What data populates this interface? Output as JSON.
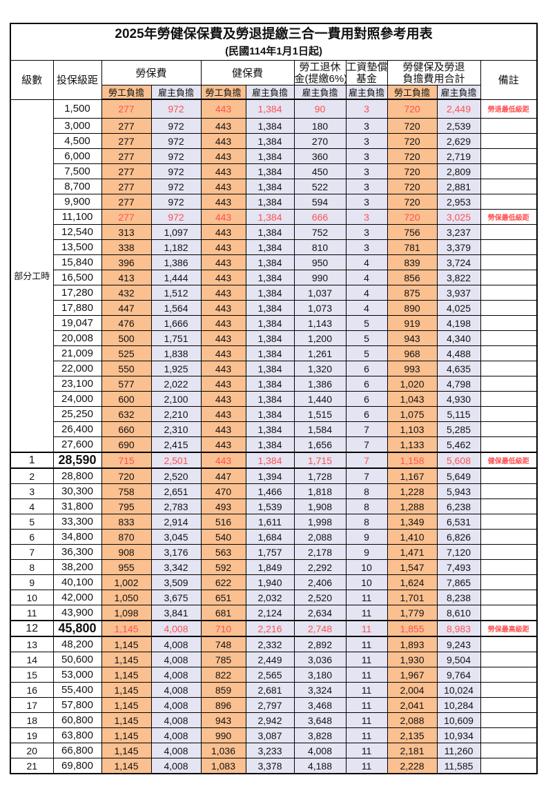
{
  "title": "2025年勞健保保費及勞退提繳三合一費用對照參考用表",
  "subtitle": "(民國114年1月1日起)",
  "header": {
    "level": "級數",
    "bracket": "投保級距",
    "labor_group": "勞保費",
    "health_group": "健保費",
    "pension_line1": "勞工退休",
    "pension_line2": "金(提繳6%)",
    "wage_line1": "工資墊償",
    "wage_line2": "基金",
    "total_line1": "勞健保及勞退",
    "total_line2": "負擔費用合計",
    "remark": "備註",
    "employee_label": "勞工負擔",
    "employer_label": "雇主負擔"
  },
  "part_time_label": "部分工時",
  "part_time_rowspan": 23,
  "colors": {
    "employee_bg": "#FAC090",
    "employer_bg": "#E4E4F2",
    "highlight_text": "#FF5050",
    "border": "#000000"
  },
  "rows": [
    {
      "level": null,
      "bracket": "1,500",
      "values": [
        "277",
        "972",
        "443",
        "1,384",
        "90",
        "3",
        "720",
        "2,449"
      ],
      "remark": "勞退最低級距",
      "red": true,
      "em": false
    },
    {
      "level": null,
      "bracket": "3,000",
      "values": [
        "277",
        "972",
        "443",
        "1,384",
        "180",
        "3",
        "720",
        "2,539"
      ],
      "remark": "",
      "red": false,
      "em": false
    },
    {
      "level": null,
      "bracket": "4,500",
      "values": [
        "277",
        "972",
        "443",
        "1,384",
        "270",
        "3",
        "720",
        "2,629"
      ],
      "remark": "",
      "red": false,
      "em": false
    },
    {
      "level": null,
      "bracket": "6,000",
      "values": [
        "277",
        "972",
        "443",
        "1,384",
        "360",
        "3",
        "720",
        "2,719"
      ],
      "remark": "",
      "red": false,
      "em": false
    },
    {
      "level": null,
      "bracket": "7,500",
      "values": [
        "277",
        "972",
        "443",
        "1,384",
        "450",
        "3",
        "720",
        "2,809"
      ],
      "remark": "",
      "red": false,
      "em": false
    },
    {
      "level": null,
      "bracket": "8,700",
      "values": [
        "277",
        "972",
        "443",
        "1,384",
        "522",
        "3",
        "720",
        "2,881"
      ],
      "remark": "",
      "red": false,
      "em": false
    },
    {
      "level": null,
      "bracket": "9,900",
      "values": [
        "277",
        "972",
        "443",
        "1,384",
        "594",
        "3",
        "720",
        "2,953"
      ],
      "remark": "",
      "red": false,
      "em": false
    },
    {
      "level": null,
      "bracket": "11,100",
      "values": [
        "277",
        "972",
        "443",
        "1,384",
        "666",
        "3",
        "720",
        "3,025"
      ],
      "remark": "勞保最低級距",
      "red": true,
      "em": false
    },
    {
      "level": null,
      "bracket": "12,540",
      "values": [
        "313",
        "1,097",
        "443",
        "1,384",
        "752",
        "3",
        "756",
        "3,237"
      ],
      "remark": "",
      "red": false,
      "em": false
    },
    {
      "level": null,
      "bracket": "13,500",
      "values": [
        "338",
        "1,182",
        "443",
        "1,384",
        "810",
        "3",
        "781",
        "3,379"
      ],
      "remark": "",
      "red": false,
      "em": false
    },
    {
      "level": null,
      "bracket": "15,840",
      "values": [
        "396",
        "1,386",
        "443",
        "1,384",
        "950",
        "4",
        "839",
        "3,724"
      ],
      "remark": "",
      "red": false,
      "em": false
    },
    {
      "level": null,
      "bracket": "16,500",
      "values": [
        "413",
        "1,444",
        "443",
        "1,384",
        "990",
        "4",
        "856",
        "3,822"
      ],
      "remark": "",
      "red": false,
      "em": false
    },
    {
      "level": null,
      "bracket": "17,280",
      "values": [
        "432",
        "1,512",
        "443",
        "1,384",
        "1,037",
        "4",
        "875",
        "3,937"
      ],
      "remark": "",
      "red": false,
      "em": false
    },
    {
      "level": null,
      "bracket": "17,880",
      "values": [
        "447",
        "1,564",
        "443",
        "1,384",
        "1,073",
        "4",
        "890",
        "4,025"
      ],
      "remark": "",
      "red": false,
      "em": false
    },
    {
      "level": null,
      "bracket": "19,047",
      "values": [
        "476",
        "1,666",
        "443",
        "1,384",
        "1,143",
        "5",
        "919",
        "4,198"
      ],
      "remark": "",
      "red": false,
      "em": false
    },
    {
      "level": null,
      "bracket": "20,008",
      "values": [
        "500",
        "1,751",
        "443",
        "1,384",
        "1,200",
        "5",
        "943",
        "4,340"
      ],
      "remark": "",
      "red": false,
      "em": false
    },
    {
      "level": null,
      "bracket": "21,009",
      "values": [
        "525",
        "1,838",
        "443",
        "1,384",
        "1,261",
        "5",
        "968",
        "4,488"
      ],
      "remark": "",
      "red": false,
      "em": false
    },
    {
      "level": null,
      "bracket": "22,000",
      "values": [
        "550",
        "1,925",
        "443",
        "1,384",
        "1,320",
        "6",
        "993",
        "4,635"
      ],
      "remark": "",
      "red": false,
      "em": false
    },
    {
      "level": null,
      "bracket": "23,100",
      "values": [
        "577",
        "2,022",
        "443",
        "1,384",
        "1,386",
        "6",
        "1,020",
        "4,798"
      ],
      "remark": "",
      "red": false,
      "em": false
    },
    {
      "level": null,
      "bracket": "24,000",
      "values": [
        "600",
        "2,100",
        "443",
        "1,384",
        "1,440",
        "6",
        "1,043",
        "4,930"
      ],
      "remark": "",
      "red": false,
      "em": false
    },
    {
      "level": null,
      "bracket": "25,250",
      "values": [
        "632",
        "2,210",
        "443",
        "1,384",
        "1,515",
        "6",
        "1,075",
        "5,115"
      ],
      "remark": "",
      "red": false,
      "em": false
    },
    {
      "level": null,
      "bracket": "26,400",
      "values": [
        "660",
        "2,310",
        "443",
        "1,384",
        "1,584",
        "7",
        "1,103",
        "5,285"
      ],
      "remark": "",
      "red": false,
      "em": false
    },
    {
      "level": null,
      "bracket": "27,600",
      "values": [
        "690",
        "2,415",
        "443",
        "1,384",
        "1,656",
        "7",
        "1,133",
        "5,462"
      ],
      "remark": "",
      "red": false,
      "em": false
    },
    {
      "level": "1",
      "bracket": "28,590",
      "values": [
        "715",
        "2,501",
        "443",
        "1,384",
        "1,715",
        "7",
        "1,158",
        "5,608"
      ],
      "remark": "健保最低級距",
      "red": true,
      "em": true
    },
    {
      "level": "2",
      "bracket": "28,800",
      "values": [
        "720",
        "2,520",
        "447",
        "1,394",
        "1,728",
        "7",
        "1,167",
        "5,649"
      ],
      "remark": "",
      "red": false,
      "em": false
    },
    {
      "level": "3",
      "bracket": "30,300",
      "values": [
        "758",
        "2,651",
        "470",
        "1,466",
        "1,818",
        "8",
        "1,228",
        "5,943"
      ],
      "remark": "",
      "red": false,
      "em": false
    },
    {
      "level": "4",
      "bracket": "31,800",
      "values": [
        "795",
        "2,783",
        "493",
        "1,539",
        "1,908",
        "8",
        "1,288",
        "6,238"
      ],
      "remark": "",
      "red": false,
      "em": false
    },
    {
      "level": "5",
      "bracket": "33,300",
      "values": [
        "833",
        "2,914",
        "516",
        "1,611",
        "1,998",
        "8",
        "1,349",
        "6,531"
      ],
      "remark": "",
      "red": false,
      "em": false
    },
    {
      "level": "6",
      "bracket": "34,800",
      "values": [
        "870",
        "3,045",
        "540",
        "1,684",
        "2,088",
        "9",
        "1,410",
        "6,826"
      ],
      "remark": "",
      "red": false,
      "em": false
    },
    {
      "level": "7",
      "bracket": "36,300",
      "values": [
        "908",
        "3,176",
        "563",
        "1,757",
        "2,178",
        "9",
        "1,471",
        "7,120"
      ],
      "remark": "",
      "red": false,
      "em": false
    },
    {
      "level": "8",
      "bracket": "38,200",
      "values": [
        "955",
        "3,342",
        "592",
        "1,849",
        "2,292",
        "10",
        "1,547",
        "7,493"
      ],
      "remark": "",
      "red": false,
      "em": false
    },
    {
      "level": "9",
      "bracket": "40,100",
      "values": [
        "1,002",
        "3,509",
        "622",
        "1,940",
        "2,406",
        "10",
        "1,624",
        "7,865"
      ],
      "remark": "",
      "red": false,
      "em": false
    },
    {
      "level": "10",
      "bracket": "42,000",
      "values": [
        "1,050",
        "3,675",
        "651",
        "2,032",
        "2,520",
        "11",
        "1,701",
        "8,238"
      ],
      "remark": "",
      "red": false,
      "em": false
    },
    {
      "level": "11",
      "bracket": "43,900",
      "values": [
        "1,098",
        "3,841",
        "681",
        "2,124",
        "2,634",
        "11",
        "1,779",
        "8,610"
      ],
      "remark": "",
      "red": false,
      "em": false
    },
    {
      "level": "12",
      "bracket": "45,800",
      "values": [
        "1,145",
        "4,008",
        "710",
        "2,216",
        "2,748",
        "11",
        "1,855",
        "8,983"
      ],
      "remark": "勞保最高級距",
      "red": true,
      "em": true
    },
    {
      "level": "13",
      "bracket": "48,200",
      "values": [
        "1,145",
        "4,008",
        "748",
        "2,332",
        "2,892",
        "11",
        "1,893",
        "9,243"
      ],
      "remark": "",
      "red": false,
      "em": false
    },
    {
      "level": "14",
      "bracket": "50,600",
      "values": [
        "1,145",
        "4,008",
        "785",
        "2,449",
        "3,036",
        "11",
        "1,930",
        "9,504"
      ],
      "remark": "",
      "red": false,
      "em": false
    },
    {
      "level": "15",
      "bracket": "53,000",
      "values": [
        "1,145",
        "4,008",
        "822",
        "2,565",
        "3,180",
        "11",
        "1,967",
        "9,764"
      ],
      "remark": "",
      "red": false,
      "em": false
    },
    {
      "level": "16",
      "bracket": "55,400",
      "values": [
        "1,145",
        "4,008",
        "859",
        "2,681",
        "3,324",
        "11",
        "2,004",
        "10,024"
      ],
      "remark": "",
      "red": false,
      "em": false
    },
    {
      "level": "17",
      "bracket": "57,800",
      "values": [
        "1,145",
        "4,008",
        "896",
        "2,797",
        "3,468",
        "11",
        "2,041",
        "10,284"
      ],
      "remark": "",
      "red": false,
      "em": false
    },
    {
      "level": "18",
      "bracket": "60,800",
      "values": [
        "1,145",
        "4,008",
        "943",
        "2,942",
        "3,648",
        "11",
        "2,088",
        "10,609"
      ],
      "remark": "",
      "red": false,
      "em": false
    },
    {
      "level": "19",
      "bracket": "63,800",
      "values": [
        "1,145",
        "4,008",
        "990",
        "3,087",
        "3,828",
        "11",
        "2,135",
        "10,934"
      ],
      "remark": "",
      "red": false,
      "em": false
    },
    {
      "level": "20",
      "bracket": "66,800",
      "values": [
        "1,145",
        "4,008",
        "1,036",
        "3,233",
        "4,008",
        "11",
        "2,181",
        "11,260"
      ],
      "remark": "",
      "red": false,
      "em": false
    },
    {
      "level": "21",
      "bracket": "69,800",
      "values": [
        "1,145",
        "4,008",
        "1,083",
        "3,378",
        "4,188",
        "11",
        "2,228",
        "11,585"
      ],
      "remark": "",
      "red": false,
      "em": false
    }
  ]
}
